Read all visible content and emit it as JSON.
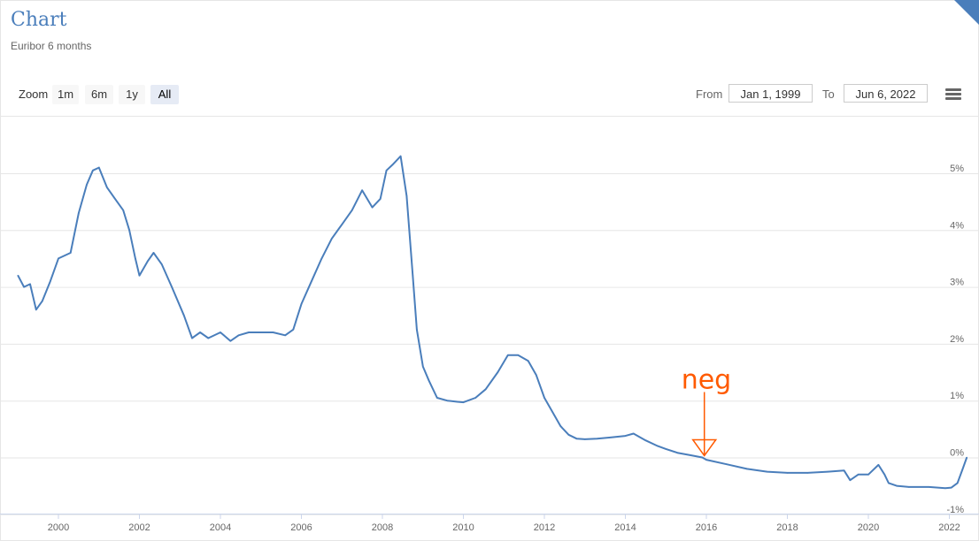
{
  "header": {
    "title": "Chart",
    "subtitle": "Euribor 6 months"
  },
  "toolbar": {
    "zoom_label": "Zoom",
    "zoom_buttons": [
      "1m",
      "6m",
      "1y",
      "All"
    ],
    "active_zoom": "All",
    "from_label": "From",
    "from_value": "Jan 1, 1999",
    "to_label": "To",
    "to_value": "Jun 6, 2022",
    "menu_icon": "hamburger-menu-icon"
  },
  "chart_data": {
    "type": "line",
    "title": "Chart",
    "subtitle": "Euribor 6 months",
    "ylim": [
      -1,
      5.5
    ],
    "y_ticks": [
      5,
      4,
      3,
      2,
      1,
      0,
      -1
    ],
    "y_tick_labels": [
      "5%",
      "4%",
      "3%",
      "2%",
      "1%",
      "0%",
      "-1%"
    ],
    "x_ticks": [
      2000,
      2002,
      2004,
      2006,
      2008,
      2010,
      2012,
      2014,
      2016,
      2018,
      2020,
      2022
    ],
    "x_tick_labels": [
      "2000",
      "2002",
      "2004",
      "2006",
      "2008",
      "2010",
      "2012",
      "2014",
      "2016",
      "2018",
      "2020",
      "2022"
    ],
    "xlim": [
      1999.0,
      2022.43
    ],
    "grid": true,
    "line_color": "#4a7ebb",
    "series": [
      {
        "x": [
          1999.0,
          1999.15,
          1999.3,
          1999.45,
          1999.6,
          1999.8,
          2000.0,
          2000.3,
          2000.5,
          2000.7,
          2000.85,
          2001.0,
          2001.2,
          2001.45,
          2001.6,
          2001.75,
          2001.9,
          2002.0,
          2002.2,
          2002.35,
          2002.55,
          2002.8,
          2003.1,
          2003.3,
          2003.5,
          2003.7,
          2004.0,
          2004.25,
          2004.45,
          2004.7,
          2005.0,
          2005.3,
          2005.6,
          2005.8,
          2006.0,
          2006.25,
          2006.5,
          2006.75,
          2007.0,
          2007.25,
          2007.5,
          2007.75,
          2007.95,
          2008.1,
          2008.25,
          2008.45,
          2008.6,
          2008.75,
          2008.85,
          2009.0,
          2009.15,
          2009.35,
          2009.6,
          2009.85,
          2010.0,
          2010.3,
          2010.55,
          2010.85,
          2011.1,
          2011.35,
          2011.6,
          2011.8,
          2012.0,
          2012.2,
          2012.4,
          2012.6,
          2012.8,
          2013.0,
          2013.3,
          2013.6,
          2014.0,
          2014.2,
          2014.5,
          2014.8,
          2015.0,
          2015.3,
          2015.6,
          2015.9,
          2016.0,
          2016.5,
          2017.0,
          2017.5,
          2018.0,
          2018.5,
          2019.0,
          2019.4,
          2019.55,
          2019.75,
          2020.0,
          2020.25,
          2020.4,
          2020.5,
          2020.7,
          2021.0,
          2021.5,
          2021.9,
          2022.05,
          2022.2,
          2022.33,
          2022.43
        ],
        "y": [
          3.2,
          3.0,
          3.05,
          2.6,
          2.75,
          3.1,
          3.5,
          3.6,
          4.3,
          4.8,
          5.05,
          5.1,
          4.75,
          4.5,
          4.35,
          4.0,
          3.5,
          3.2,
          3.45,
          3.6,
          3.4,
          3.0,
          2.5,
          2.1,
          2.2,
          2.1,
          2.2,
          2.05,
          2.15,
          2.2,
          2.2,
          2.2,
          2.15,
          2.25,
          2.7,
          3.1,
          3.5,
          3.85,
          4.1,
          4.35,
          4.7,
          4.4,
          4.55,
          5.05,
          5.15,
          5.3,
          4.6,
          3.2,
          2.25,
          1.6,
          1.35,
          1.05,
          1.0,
          0.98,
          0.97,
          1.05,
          1.2,
          1.5,
          1.8,
          1.8,
          1.7,
          1.45,
          1.05,
          0.8,
          0.55,
          0.4,
          0.33,
          0.32,
          0.33,
          0.35,
          0.38,
          0.42,
          0.3,
          0.2,
          0.15,
          0.08,
          0.04,
          0.0,
          -0.04,
          -0.12,
          -0.2,
          -0.25,
          -0.27,
          -0.27,
          -0.25,
          -0.23,
          -0.4,
          -0.3,
          -0.3,
          -0.13,
          -0.3,
          -0.45,
          -0.5,
          -0.52,
          -0.52,
          -0.54,
          -0.53,
          -0.45,
          -0.2,
          0.0
        ]
      }
    ],
    "annotations": [
      {
        "text": "neg",
        "x": 2015.95,
        "y": 0.0,
        "color": "#ff5a00"
      }
    ]
  }
}
